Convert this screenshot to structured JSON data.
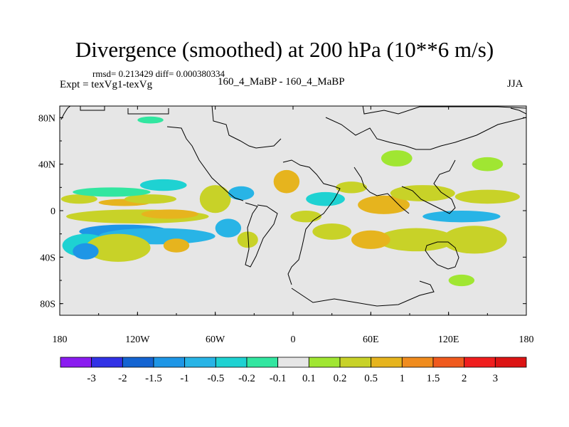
{
  "chart_data": {
    "type": "heatmap",
    "title": "Divergence (smoothed) at 200 hPa (10**6 m/s)",
    "stats_line": "rmsd= 0.213429 diff= 0.000380334",
    "left_label": "Expt = texVg1-texVg",
    "center_label": "160_4_MaBP - 160_4_MaBP",
    "right_label": "JJA",
    "x_ticks": [
      {
        "value": -180,
        "label": "180"
      },
      {
        "value": -120,
        "label": "120W"
      },
      {
        "value": -60,
        "label": "60W"
      },
      {
        "value": 0,
        "label": "0"
      },
      {
        "value": 60,
        "label": "60E"
      },
      {
        "value": 120,
        "label": "120E"
      },
      {
        "value": 180,
        "label": "180"
      }
    ],
    "y_ticks": [
      {
        "value": 80,
        "label": "80N"
      },
      {
        "value": 40,
        "label": "40N"
      },
      {
        "value": 0,
        "label": "0"
      },
      {
        "value": -40,
        "label": "40S"
      },
      {
        "value": -80,
        "label": "80S"
      }
    ],
    "xlim": [
      -180,
      180
    ],
    "ylim": [
      -90,
      90
    ],
    "colorbar": {
      "levels": [
        "-3",
        "-2",
        "-1.5",
        "-1",
        "-0.5",
        "-0.2",
        "-0.1",
        "0.1",
        "0.2",
        "0.5",
        "1",
        "1.5",
        "2",
        "3"
      ],
      "colors": [
        "#8a1cf0",
        "#3232e6",
        "#1464d2",
        "#1e96e6",
        "#28b4e6",
        "#1ed2d2",
        "#32e6a0",
        "#e6e6e6",
        "#a0e632",
        "#c8d228",
        "#e6b41e",
        "#f08c1e",
        "#f05a1e",
        "#f01e1e",
        "#dc1414"
      ]
    },
    "field_blobs": [
      {
        "lon": -165,
        "lat": 10,
        "rx": 14,
        "ry": 4,
        "bin": 9
      },
      {
        "lon": -130,
        "lat": 7,
        "rx": 20,
        "ry": 3,
        "bin": 10
      },
      {
        "lon": -110,
        "lat": 10,
        "rx": 20,
        "ry": 4,
        "bin": 9
      },
      {
        "lon": -140,
        "lat": 16,
        "rx": 30,
        "ry": 4,
        "bin": 6
      },
      {
        "lon": -100,
        "lat": 22,
        "rx": 18,
        "ry": 5,
        "bin": 5
      },
      {
        "lon": -120,
        "lat": -5,
        "rx": 55,
        "ry": 6,
        "bin": 9
      },
      {
        "lon": -95,
        "lat": -3,
        "rx": 22,
        "ry": 4,
        "bin": 10
      },
      {
        "lon": -130,
        "lat": -18,
        "rx": 35,
        "ry": 6,
        "bin": 3
      },
      {
        "lon": -105,
        "lat": -22,
        "rx": 45,
        "ry": 7,
        "bin": 4
      },
      {
        "lon": -160,
        "lat": -30,
        "rx": 18,
        "ry": 10,
        "bin": 5
      },
      {
        "lon": -135,
        "lat": -32,
        "rx": 25,
        "ry": 12,
        "bin": 9
      },
      {
        "lon": -160,
        "lat": -35,
        "rx": 10,
        "ry": 7,
        "bin": 3
      },
      {
        "lon": -90,
        "lat": -30,
        "rx": 10,
        "ry": 6,
        "bin": 10
      },
      {
        "lon": -60,
        "lat": 10,
        "rx": 12,
        "ry": 12,
        "bin": 9
      },
      {
        "lon": -40,
        "lat": 15,
        "rx": 10,
        "ry": 6,
        "bin": 4
      },
      {
        "lon": -50,
        "lat": -15,
        "rx": 10,
        "ry": 8,
        "bin": 4
      },
      {
        "lon": -35,
        "lat": -25,
        "rx": 8,
        "ry": 7,
        "bin": 9
      },
      {
        "lon": -5,
        "lat": 25,
        "rx": 10,
        "ry": 10,
        "bin": 10
      },
      {
        "lon": 25,
        "lat": 10,
        "rx": 15,
        "ry": 6,
        "bin": 5
      },
      {
        "lon": 10,
        "lat": -5,
        "rx": 12,
        "ry": 5,
        "bin": 9
      },
      {
        "lon": 30,
        "lat": -18,
        "rx": 15,
        "ry": 7,
        "bin": 9
      },
      {
        "lon": 45,
        "lat": 20,
        "rx": 12,
        "ry": 5,
        "bin": 9
      },
      {
        "lon": 70,
        "lat": 5,
        "rx": 20,
        "ry": 8,
        "bin": 10
      },
      {
        "lon": 100,
        "lat": 15,
        "rx": 25,
        "ry": 7,
        "bin": 9
      },
      {
        "lon": 150,
        "lat": 12,
        "rx": 25,
        "ry": 6,
        "bin": 9
      },
      {
        "lon": 130,
        "lat": -5,
        "rx": 30,
        "ry": 5,
        "bin": 4
      },
      {
        "lon": 95,
        "lat": -25,
        "rx": 30,
        "ry": 10,
        "bin": 9
      },
      {
        "lon": 140,
        "lat": -25,
        "rx": 25,
        "ry": 12,
        "bin": 9
      },
      {
        "lon": 60,
        "lat": -25,
        "rx": 15,
        "ry": 8,
        "bin": 10
      },
      {
        "lon": 150,
        "lat": 40,
        "rx": 12,
        "ry": 6,
        "bin": 8
      },
      {
        "lon": 80,
        "lat": 45,
        "rx": 12,
        "ry": 7,
        "bin": 8
      },
      {
        "lon": -110,
        "lat": 78,
        "rx": 10,
        "ry": 3,
        "bin": 6
      },
      {
        "lon": 130,
        "lat": -60,
        "rx": 10,
        "ry": 5,
        "bin": 8
      }
    ]
  }
}
